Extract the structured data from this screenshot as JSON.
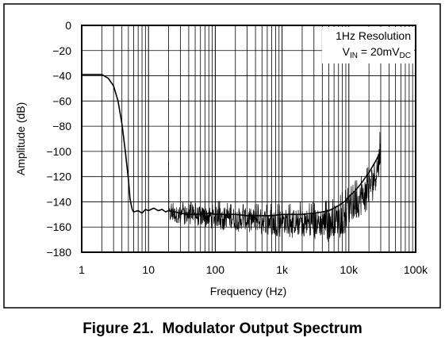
{
  "caption": "Figure 21.  Modulator Output Spectrum",
  "chart_data": {
    "type": "line",
    "xlabel": "Frequency (Hz)",
    "ylabel": "Amplitude (dB)",
    "x_scale": "log",
    "xlim": [
      1,
      100000
    ],
    "ylim": [
      -180,
      0
    ],
    "grid": true,
    "x_ticks": [
      1,
      10,
      100,
      1000,
      10000,
      100000
    ],
    "x_tick_labels": [
      "1",
      "10",
      "100",
      "1k",
      "10k",
      "100k"
    ],
    "y_ticks": [
      0,
      -20,
      -40,
      -60,
      -80,
      -100,
      -120,
      -140,
      -160,
      -180
    ],
    "y_tick_labels": [
      "0",
      "−20",
      "−40",
      "−60",
      "−80",
      "−100",
      "−120",
      "−140",
      "−160",
      "−180"
    ],
    "legend": {
      "line1": "1Hz Resolution",
      "line2_prefix": "V",
      "line2_sub1": "IN",
      "line2_mid": " = 20mV",
      "line2_sub2": "DC",
      "position": "top-right"
    },
    "series": [
      {
        "color": "#000000",
        "x": [
          1,
          1.5,
          2,
          2.5,
          3,
          3.5,
          4,
          4.5,
          5,
          5.3,
          5.7,
          6,
          7,
          8,
          9,
          10,
          12,
          14,
          16,
          18,
          20,
          25,
          30,
          40,
          50,
          60,
          80,
          100,
          150,
          200,
          300,
          400,
          500,
          700,
          1000,
          1500,
          2000,
          3000,
          4000,
          5000,
          6000,
          7000,
          8000,
          9000,
          10000,
          12000,
          14000,
          16000,
          18000,
          20000,
          22000,
          25000,
          28000,
          30000
        ],
        "y": [
          -39,
          -39,
          -39,
          -42,
          -48,
          -60,
          -78,
          -100,
          -122,
          -138,
          -146,
          -148,
          -147,
          -149,
          -146,
          -147,
          -145,
          -147,
          -146,
          -148,
          -147,
          -148,
          -149,
          -150,
          -150,
          -150,
          -149,
          -150,
          -150,
          -150,
          -151,
          -151,
          -151,
          -151,
          -150,
          -150,
          -150,
          -149,
          -148,
          -147,
          -145,
          -143,
          -141,
          -139,
          -136,
          -132,
          -128,
          -124,
          -120,
          -117,
          -113,
          -108,
          -103,
          -100
        ],
        "noise_band": {
          "x": [
            20,
            100,
            300,
            1000,
            3000,
            5000,
            8000,
            10000,
            15000,
            20000,
            25000,
            30000
          ],
          "upper": [
            -140,
            -139,
            -140,
            -140,
            -140,
            -138,
            -132,
            -128,
            -118,
            -110,
            -98,
            -82
          ],
          "lower": [
            -158,
            -162,
            -165,
            -168,
            -170,
            -172,
            -168,
            -162,
            -155,
            -145,
            -135,
            -120
          ]
        }
      }
    ]
  }
}
